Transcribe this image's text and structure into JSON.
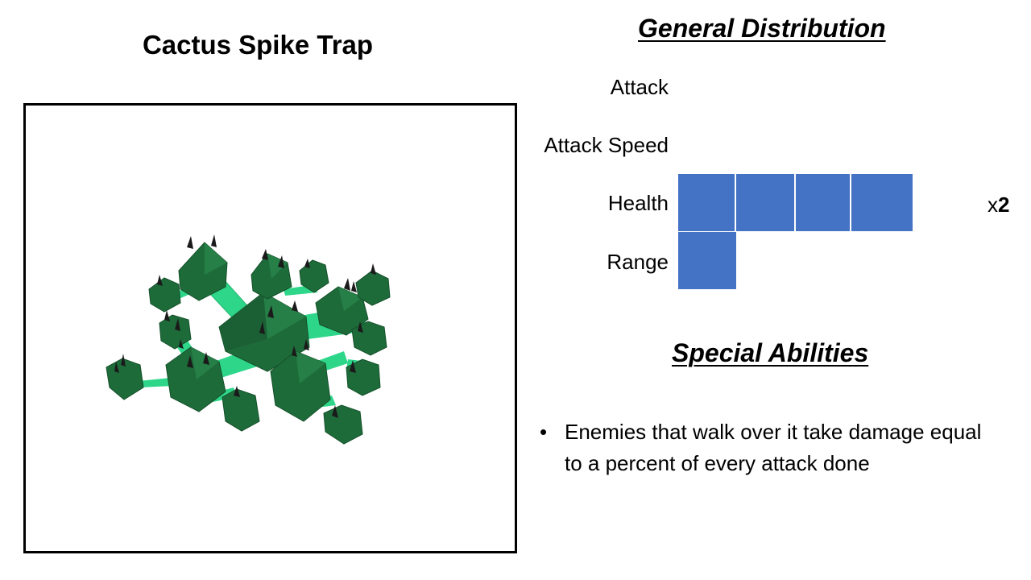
{
  "unit": {
    "name": "Cactus Spike Trap"
  },
  "distribution": {
    "heading": "General Distribution",
    "stats": [
      {
        "label": "Attack",
        "blocks": 0,
        "multiplier": null
      },
      {
        "label": "Attack Speed",
        "blocks": 0,
        "multiplier": null
      },
      {
        "label": "Health",
        "blocks": 4,
        "multiplier": {
          "prefix": "x",
          "value": "2"
        }
      },
      {
        "label": "Range",
        "blocks": 1,
        "multiplier": null
      }
    ],
    "bar_color": "#4472C4"
  },
  "abilities": {
    "heading": "Special Abilities",
    "bullet": "•",
    "items": [
      "Enemies that walk over it take damage equal to a percent of every attack done"
    ]
  },
  "colors": {
    "cactus_dark": "#1E6B3A",
    "cactus_stem": "#2ED68A",
    "spike": "#1A1A1A"
  }
}
